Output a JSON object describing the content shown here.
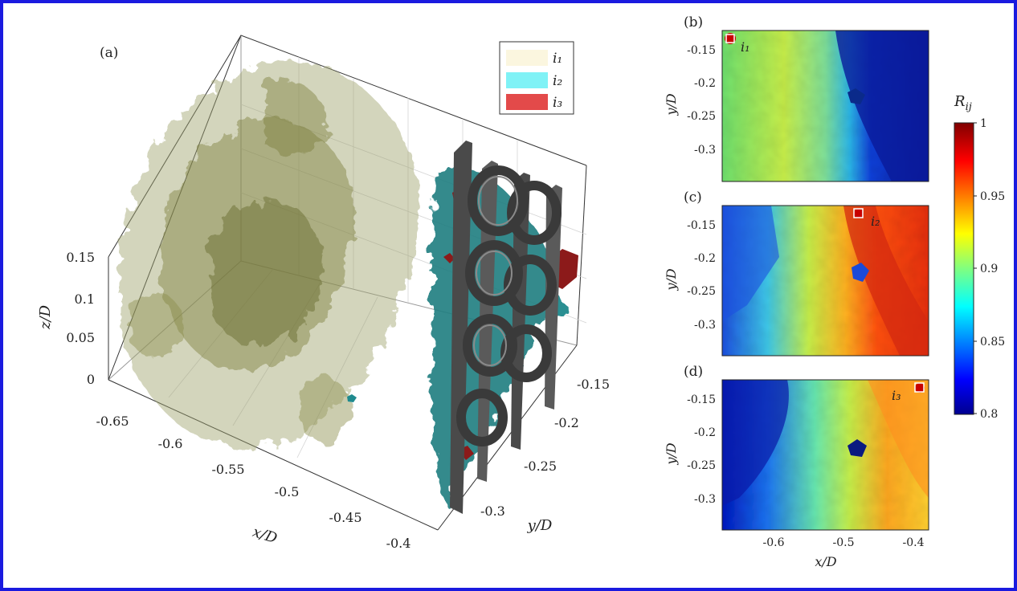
{
  "figure": {
    "border_color": "#1a1adf"
  },
  "panels": {
    "a": {
      "label": "(a)"
    },
    "b": {
      "label": "(b)"
    },
    "c": {
      "label": "(c)"
    },
    "d": {
      "label": "(d)"
    }
  },
  "legend": {
    "items": [
      {
        "label": "i₁",
        "color": "#fbf6df"
      },
      {
        "label": "i₂",
        "color": "#7ff2f6"
      },
      {
        "label": "i₃",
        "color": "#e34a4a"
      }
    ]
  },
  "colorbar": {
    "title": "R",
    "title_sub": "ij",
    "ticks": [
      "1",
      "0.95",
      "0.9",
      "0.85",
      "0.8"
    ],
    "range": [
      0.8,
      1.0
    ],
    "colormap": "jet"
  },
  "chart_data": [
    {
      "type": "scatter",
      "panel": "a",
      "title": "",
      "xlabel": "x/D",
      "ylabel": "y/D",
      "zlabel": "z/D",
      "x_ticks": [
        "-0.65",
        "-0.6",
        "-0.55",
        "-0.5",
        "-0.45",
        "-0.4"
      ],
      "y_ticks": [
        "-0.15",
        "-0.2",
        "-0.25",
        "-0.3"
      ],
      "z_ticks": [
        "0.15",
        "0.1",
        "0.05",
        "0"
      ],
      "xlim": [
        -0.67,
        -0.38
      ],
      "ylim": [
        -0.34,
        -0.12
      ],
      "zlim": [
        0,
        0.19
      ],
      "series": [
        {
          "name": "i₁",
          "color": "#8a8a3a"
        },
        {
          "name": "i₂",
          "color": "#1f7d80"
        },
        {
          "name": "i₃",
          "color": "#8c1a1a"
        }
      ]
    },
    {
      "type": "heatmap",
      "panel": "b",
      "xlabel": "",
      "ylabel": "y/D",
      "y_ticks": [
        "-0.15",
        "-0.2",
        "-0.25",
        "-0.3"
      ],
      "xlim": [
        -0.68,
        -0.38
      ],
      "ylim": [
        -0.345,
        -0.12
      ],
      "marker": {
        "label": "i₁",
        "x": -0.67,
        "y": -0.135
      }
    },
    {
      "type": "heatmap",
      "panel": "c",
      "xlabel": "",
      "ylabel": "y/D",
      "y_ticks": [
        "-0.15",
        "-0.2",
        "-0.25",
        "-0.3"
      ],
      "xlim": [
        -0.68,
        -0.38
      ],
      "ylim": [
        -0.345,
        -0.12
      ],
      "marker": {
        "label": "i₂",
        "x": -0.478,
        "y": -0.135
      }
    },
    {
      "type": "heatmap",
      "panel": "d",
      "xlabel": "x/D",
      "ylabel": "y/D",
      "x_ticks": [
        "-0.6",
        "-0.5",
        "-0.4"
      ],
      "y_ticks": [
        "-0.15",
        "-0.2",
        "-0.25",
        "-0.3"
      ],
      "xlim": [
        -0.68,
        -0.38
      ],
      "ylim": [
        -0.345,
        -0.12
      ],
      "marker": {
        "label": "i₃",
        "x": -0.387,
        "y": -0.135
      }
    }
  ]
}
